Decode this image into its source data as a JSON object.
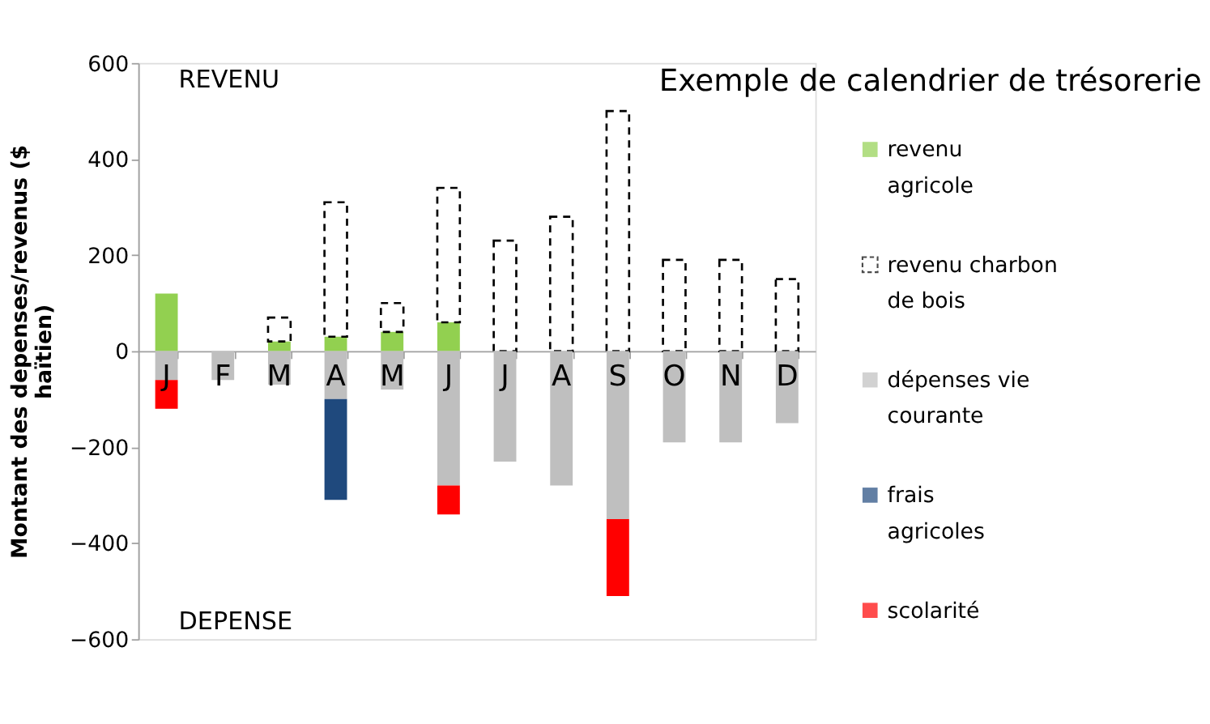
{
  "chart_data": {
    "type": "bar",
    "title": "Exemple de calendrier de trésorerie",
    "ylabel": "Montant des depenses/revenus ($ haïtien)",
    "categories": [
      "J",
      "F",
      "M",
      "A",
      "M",
      "J",
      "J",
      "A",
      "S",
      "O",
      "N",
      "D"
    ],
    "stacked": true,
    "series": [
      {
        "name": "revenu agricole",
        "color": "#92d050",
        "values": [
          120,
          null,
          20,
          30,
          40,
          60,
          null,
          null,
          null,
          null,
          null,
          null
        ]
      },
      {
        "name": "revenu charbon de bois",
        "color": "#000000",
        "line_style": "dashed",
        "values": [
          null,
          null,
          50,
          280,
          60,
          280,
          230,
          280,
          500,
          190,
          190,
          150
        ]
      },
      {
        "name": "dépenses vie courante",
        "color": "#bfbfbf",
        "values": [
          -60,
          -60,
          -70,
          -100,
          -80,
          -280,
          -230,
          -280,
          -350,
          -190,
          -190,
          -150
        ]
      },
      {
        "name": "frais agricoles",
        "color": "#1f497d",
        "values": [
          null,
          null,
          null,
          -210,
          null,
          null,
          null,
          null,
          null,
          null,
          null,
          null
        ]
      },
      {
        "name": "scolarité",
        "color": "#ff0000",
        "values": [
          -60,
          null,
          null,
          null,
          null,
          -60,
          null,
          null,
          -160,
          null,
          null,
          null
        ]
      }
    ],
    "ylim": [
      -600,
      600
    ],
    "yticks": [
      -600,
      -400,
      -200,
      0,
      200,
      400,
      600
    ],
    "grid": false,
    "legend": "right",
    "annotations": [
      "REVENU",
      "DEPENSE"
    ]
  }
}
